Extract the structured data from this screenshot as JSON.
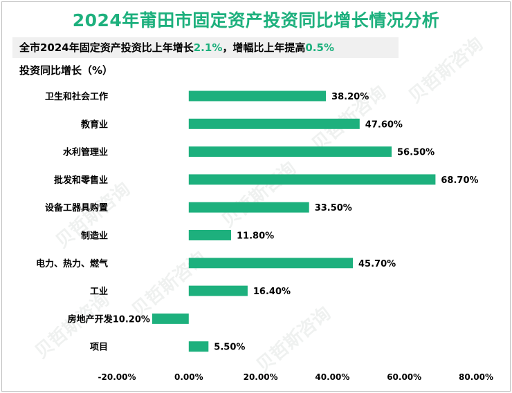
{
  "title": "2024年莆田市固定资产投资同比增长情况分析",
  "subtitle": {
    "prefix": "全市2024年固定资产投资比上年增长",
    "growth": "2.1%",
    "middle": "，增幅比上年提高",
    "increase": "0.5%"
  },
  "watermark": "贝哲斯咨询",
  "colors": {
    "bar": "#1db07d",
    "title": "#1db07d",
    "highlight": "#1db07d"
  },
  "chart_data": {
    "type": "bar",
    "orientation": "horizontal",
    "title": "2024年莆田市固定资产投资同比增长情况分析",
    "ylabel": "投资同比增长（%）",
    "categories": [
      "卫生和社会工作",
      "教育业",
      "水利管理业",
      "批发和零售业",
      "设备工器具购置",
      "制造业",
      "电力、热力、燃气",
      "工业",
      "房地产开发",
      "项目"
    ],
    "values": [
      38.2,
      47.6,
      56.5,
      68.7,
      33.5,
      11.8,
      45.7,
      16.4,
      -10.2,
      5.5
    ],
    "value_labels": [
      "38.20%",
      "47.60%",
      "56.50%",
      "68.70%",
      "33.50%",
      "11.80%",
      "45.70%",
      "16.40%",
      "-10.20%",
      "5.50%"
    ],
    "xlim": [
      -20,
      80
    ],
    "xticks": [
      -20,
      0,
      20,
      40,
      60,
      80
    ],
    "xtick_labels": [
      "-20.00%",
      "0.00%",
      "20.00%",
      "40.00%",
      "60.00%",
      "80.00%"
    ],
    "grid": false,
    "legend": "none"
  }
}
